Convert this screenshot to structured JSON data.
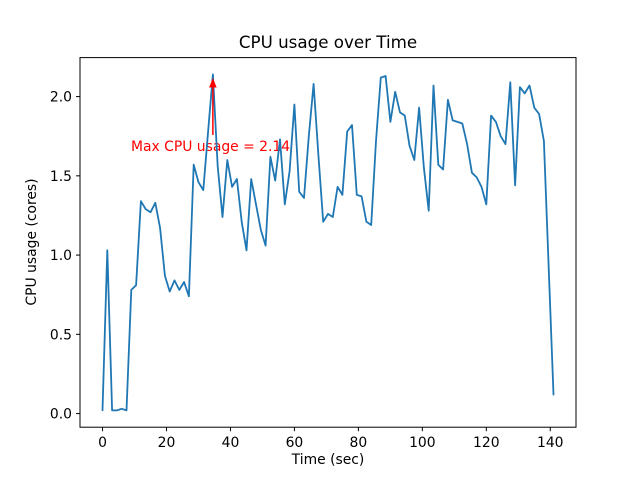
{
  "chart_data": {
    "type": "line",
    "title": "CPU usage over Time",
    "xlabel": "Time (sec)",
    "ylabel": "CPU usage (cores)",
    "x": [
      0,
      1.5,
      3,
      4.5,
      6,
      7.5,
      9,
      10.5,
      12,
      13.5,
      15,
      16.5,
      18,
      19.5,
      21,
      22.5,
      24,
      25.5,
      27,
      28.5,
      30,
      31.5,
      33,
      34.5,
      36,
      37.5,
      39,
      40.5,
      42,
      43.5,
      45,
      46.5,
      48,
      49.5,
      51,
      52.5,
      54,
      55.5,
      57,
      58.5,
      60,
      61.5,
      63,
      64.5,
      66,
      67.5,
      69,
      70.5,
      72,
      73.5,
      75,
      76.5,
      78,
      79.5,
      81,
      82.5,
      84,
      85.5,
      87,
      88.5,
      90,
      91.5,
      93,
      94.5,
      96,
      97.5,
      99,
      100.5,
      102,
      103.5,
      105,
      106.5,
      108,
      109.5,
      111,
      112.5,
      114,
      115.5,
      117,
      118.5,
      120,
      121.5,
      123,
      124.5,
      126,
      127.5,
      129,
      130.5,
      132,
      133.5,
      135,
      136.5,
      138,
      139.5,
      141
    ],
    "series": [
      {
        "name": "CPU usage",
        "color": "#1f77b4",
        "values": [
          0.02,
          1.03,
          0.02,
          0.02,
          0.03,
          0.02,
          0.78,
          0.81,
          1.34,
          1.29,
          1.27,
          1.33,
          1.17,
          0.87,
          0.77,
          0.84,
          0.78,
          0.83,
          0.74,
          1.57,
          1.46,
          1.41,
          1.78,
          2.14,
          1.56,
          1.24,
          1.6,
          1.43,
          1.48,
          1.21,
          1.03,
          1.48,
          1.32,
          1.16,
          1.06,
          1.62,
          1.47,
          1.73,
          1.32,
          1.53,
          1.95,
          1.4,
          1.36,
          1.75,
          2.08,
          1.63,
          1.21,
          1.26,
          1.24,
          1.43,
          1.38,
          1.78,
          1.82,
          1.38,
          1.37,
          1.21,
          1.19,
          1.72,
          2.12,
          2.13,
          1.84,
          2.03,
          1.9,
          1.88,
          1.69,
          1.6,
          1.93,
          1.55,
          1.28,
          2.07,
          1.57,
          1.54,
          1.98,
          1.85,
          1.84,
          1.83,
          1.7,
          1.52,
          1.49,
          1.43,
          1.32,
          1.88,
          1.84,
          1.75,
          1.7,
          2.09,
          1.44,
          2.06,
          2.02,
          2.07,
          1.93,
          1.89,
          1.72,
          0.92,
          0.12
        ]
      }
    ],
    "xticks": {
      "values": [
        0,
        20,
        40,
        60,
        80,
        100,
        120,
        140
      ],
      "labels": [
        "0",
        "20",
        "40",
        "60",
        "80",
        "100",
        "120",
        "140"
      ]
    },
    "yticks": {
      "values": [
        0.0,
        0.5,
        1.0,
        1.5,
        2.0
      ],
      "labels": [
        "0.0",
        "0.5",
        "1.0",
        "1.5",
        "2.0"
      ]
    },
    "xlim": [
      -7.05,
      148.05
    ],
    "ylim": [
      -0.086,
      2.246
    ],
    "grid": false,
    "legend": false,
    "annotation": {
      "text": "Max CPU usage = 2.14",
      "color": "#ff0000",
      "max_value": 2.14,
      "points_to": {
        "x": 34.5,
        "y": 2.14
      },
      "arrow": {
        "x": 34.5,
        "y_from": 1.758,
        "y_to": 2.117
      }
    },
    "colors": {
      "line": "#1f77b4",
      "spine": "#000000",
      "background": "#ffffff"
    }
  }
}
